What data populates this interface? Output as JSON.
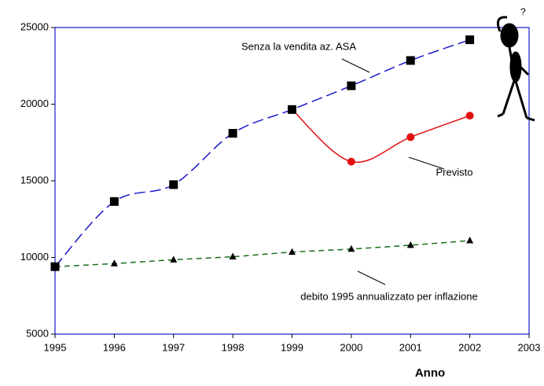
{
  "chart_data": {
    "type": "line",
    "x": [
      1995,
      1996,
      1997,
      1998,
      1999,
      2000,
      2001,
      2002
    ],
    "series": [
      {
        "name": "Senza la vendita az. ASA",
        "color": "#1a1acc",
        "marker": "square",
        "values": [
          9400,
          13650,
          14750,
          18100,
          19650,
          21200,
          22850,
          24200
        ]
      },
      {
        "name": "Previsto",
        "color": "#e01010",
        "marker": "circle",
        "values": [
          null,
          null,
          null,
          null,
          19650,
          16250,
          17850,
          19250
        ]
      },
      {
        "name": "debito 1995 annualizzato per inflazione",
        "color": "#1a6e1a",
        "marker": "triangle",
        "values": [
          9400,
          9600,
          9850,
          10050,
          10350,
          10550,
          10800,
          11100
        ]
      }
    ],
    "x_label": "Anno",
    "xlim": [
      1995,
      2003
    ],
    "xticks": [
      1995,
      1996,
      1997,
      1998,
      1999,
      2000,
      2001,
      2002,
      2003
    ],
    "ylim": [
      5000,
      25000
    ],
    "yticks": [
      5000,
      10000,
      15000,
      20000,
      25000
    ]
  }
}
